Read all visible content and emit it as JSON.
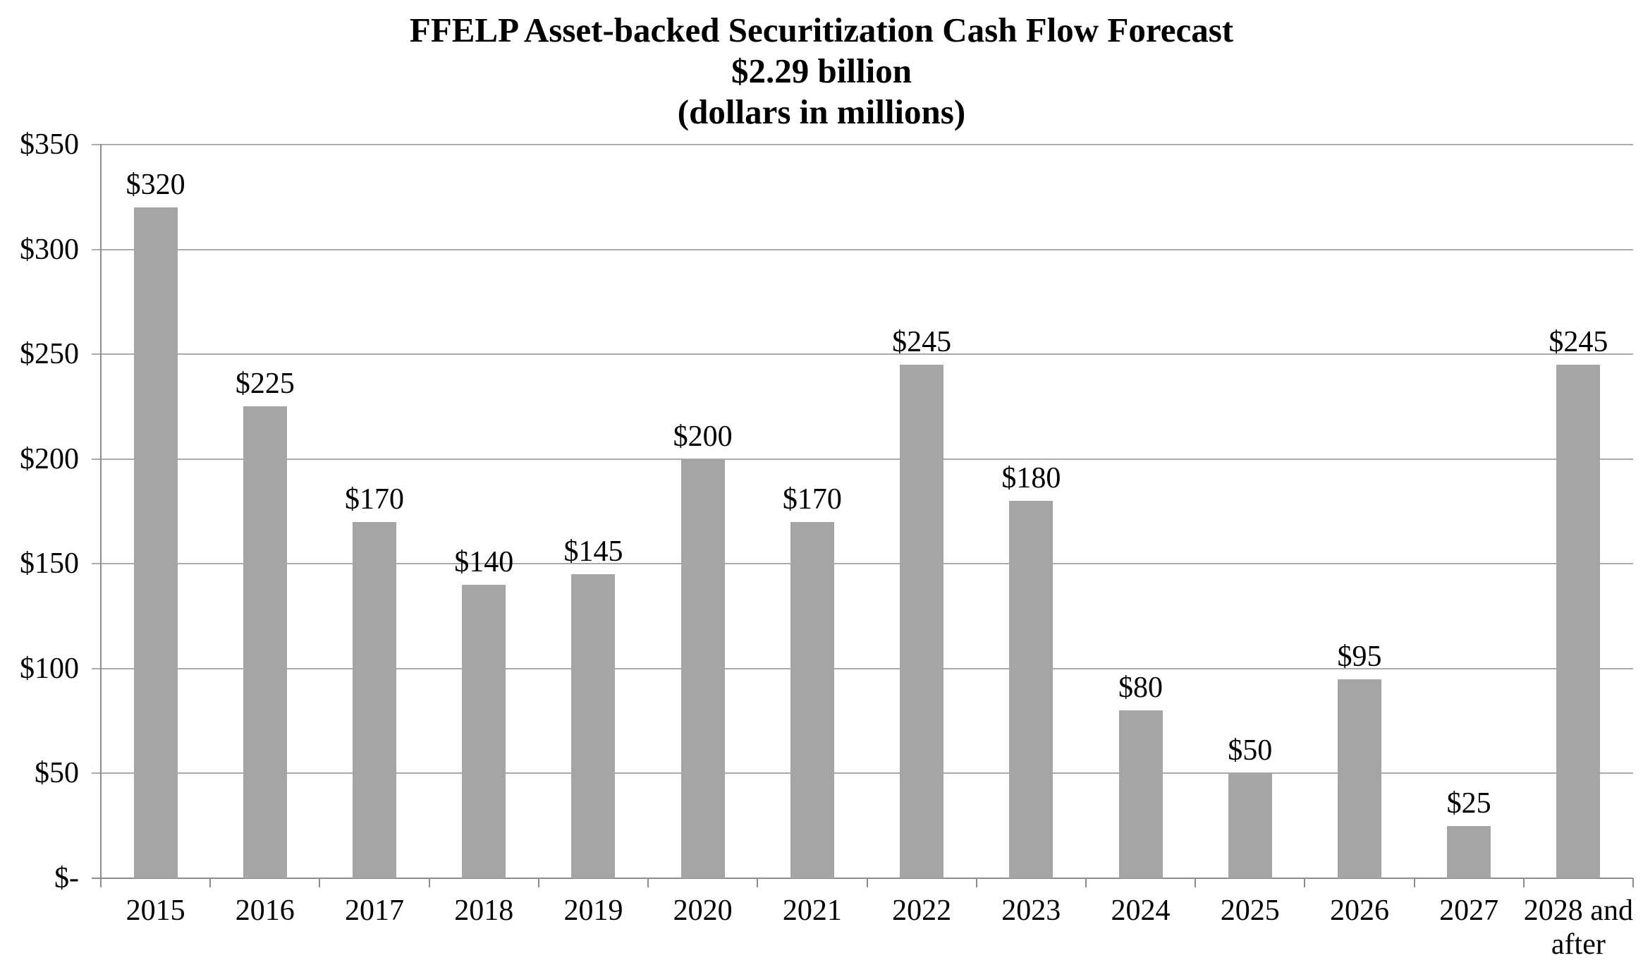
{
  "chart_data": {
    "type": "bar",
    "title_lines": [
      "FFELP Asset-backed Securitization Cash Flow Forecast",
      "$2.29 billion",
      "(dollars in millions)"
    ],
    "title": "FFELP Asset-backed Securitization Cash Flow Forecast",
    "subtitle": "$2.29 billion",
    "units_note": "(dollars in millions)",
    "categories": [
      "2015",
      "2016",
      "2017",
      "2018",
      "2019",
      "2020",
      "2021",
      "2022",
      "2023",
      "2024",
      "2025",
      "2026",
      "2027",
      "2028 and\nafter"
    ],
    "values": [
      320,
      225,
      170,
      140,
      145,
      200,
      170,
      245,
      180,
      80,
      50,
      95,
      25,
      245
    ],
    "data_labels": [
      "$320",
      "$225",
      "$170",
      "$140",
      "$145",
      "$200",
      "$170",
      "$245",
      "$180",
      "$80",
      "$50",
      "$95",
      "$25",
      "$245"
    ],
    "total_label": "$2.29 billion",
    "ylim": [
      0,
      350
    ],
    "y_ticks": [
      {
        "value": 0,
        "label": "$-"
      },
      {
        "value": 50,
        "label": "$50"
      },
      {
        "value": 100,
        "label": "$100"
      },
      {
        "value": 150,
        "label": "$150"
      },
      {
        "value": 200,
        "label": "$200"
      },
      {
        "value": 250,
        "label": "$250"
      },
      {
        "value": 300,
        "label": "$300"
      },
      {
        "value": 350,
        "label": "$350"
      }
    ],
    "grid": true,
    "legend": false,
    "bar_color": "#a5a5a5",
    "gridline_color": "#ababab",
    "axis_color": "#8c8c8c",
    "text_color": "#000000",
    "background_color": "#ffffff"
  }
}
